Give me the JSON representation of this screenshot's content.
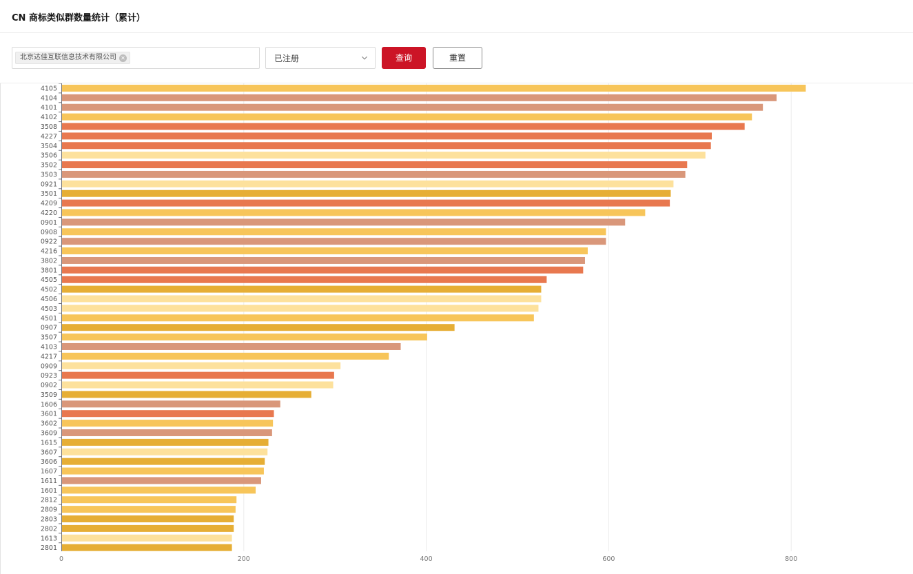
{
  "header": {
    "title": "CN 商标类似群数量统计（累计）"
  },
  "filters": {
    "company_tag": "北京达佳互联信息技术有限公司",
    "status_value": "已注册",
    "query_label": "查询",
    "reset_label": "重置"
  },
  "icons": {
    "tag_close": "close-icon",
    "dropdown": "chevron-down-icon"
  },
  "colors": {
    "primary": "#cc1426",
    "palette": [
      "#f7c55a",
      "#d9977a",
      "#e8784f",
      "#fde19c",
      "#e6ae35"
    ]
  },
  "chart_data": {
    "type": "bar",
    "orientation": "horizontal",
    "title": "",
    "xlabel": "",
    "ylabel": "",
    "xlim": [
      0,
      900
    ],
    "x_ticks": [
      0,
      200,
      400,
      600,
      800
    ],
    "grid": true,
    "categories": [
      "4105",
      "4104",
      "4101",
      "4102",
      "3508",
      "4227",
      "3504",
      "3506",
      "3502",
      "3503",
      "0921",
      "3501",
      "4209",
      "4220",
      "0901",
      "0908",
      "0922",
      "4216",
      "3802",
      "3801",
      "4505",
      "4502",
      "4506",
      "4503",
      "4501",
      "0907",
      "3507",
      "4103",
      "4217",
      "0909",
      "0923",
      "0902",
      "3509",
      "1606",
      "3601",
      "3602",
      "3609",
      "1615",
      "3607",
      "3606",
      "1607",
      "1611",
      "1601",
      "2812",
      "2809",
      "2803",
      "2802",
      "1613",
      "2801"
    ],
    "values": [
      816,
      784,
      769,
      757,
      749,
      713,
      712,
      706,
      686,
      684,
      671,
      668,
      667,
      640,
      618,
      597,
      597,
      577,
      574,
      572,
      532,
      526,
      526,
      523,
      518,
      431,
      401,
      372,
      359,
      306,
      299,
      298,
      274,
      240,
      233,
      232,
      231,
      227,
      226,
      223,
      222,
      219,
      213,
      192,
      191,
      189,
      189,
      187,
      187
    ],
    "color_index": [
      0,
      1,
      1,
      0,
      2,
      2,
      2,
      3,
      2,
      1,
      3,
      4,
      2,
      0,
      1,
      0,
      1,
      0,
      1,
      2,
      2,
      4,
      3,
      3,
      0,
      4,
      0,
      1,
      0,
      3,
      2,
      3,
      4,
      1,
      2,
      0,
      1,
      4,
      3,
      4,
      0,
      1,
      0,
      0,
      0,
      4,
      4,
      3,
      4
    ]
  }
}
